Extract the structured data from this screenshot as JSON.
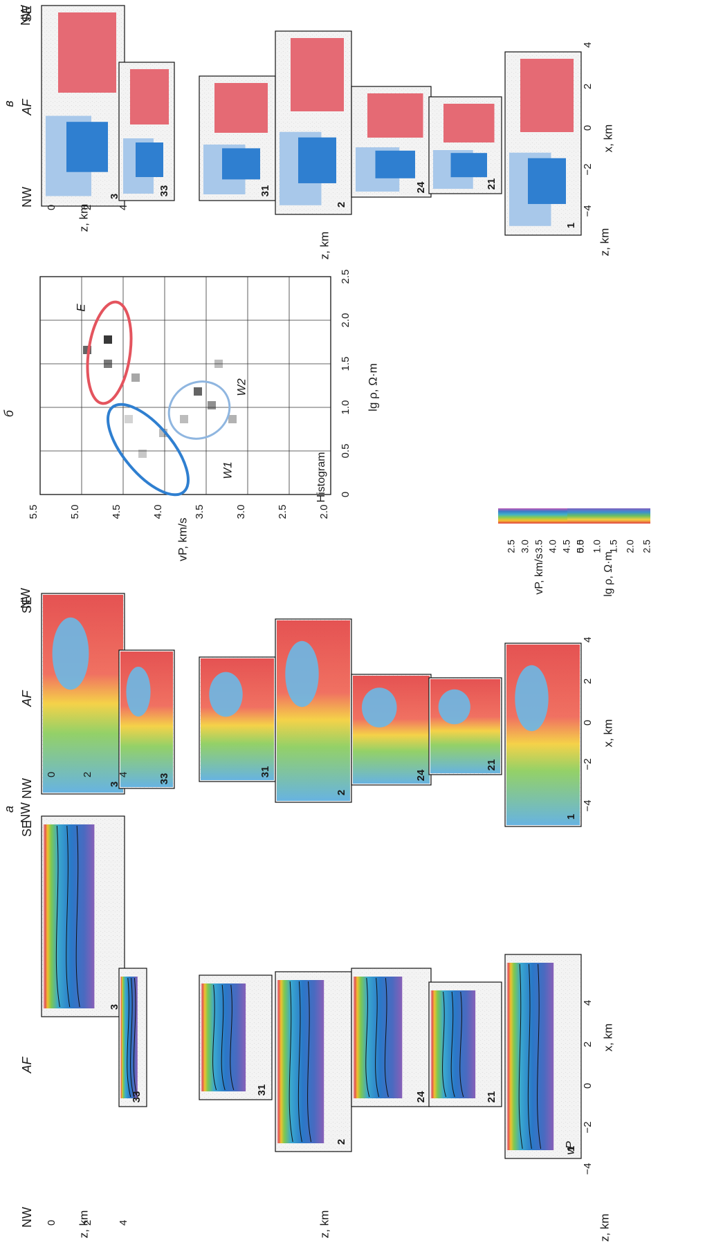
{
  "panel_letters": {
    "a": "а",
    "b": "б",
    "v": "в"
  },
  "profile_ids": [
    "3",
    "33",
    "31",
    "2",
    "24",
    "21",
    "1"
  ],
  "labels": {
    "nw": "NW",
    "se": "SE",
    "af": "AF",
    "z_axis": "z, km",
    "x_axis": "x, km",
    "vp_symbol": "vP"
  },
  "z_ticks": [
    "0",
    "2",
    "4"
  ],
  "x_ticks": [
    "−4",
    "−2",
    "0",
    "2",
    "4"
  ],
  "histogram": {
    "label": "Histogram",
    "ylabel": "vP, km/s",
    "xlabel": "lg ρ, Ω·m",
    "y_ticks": [
      "5.5",
      "5.0",
      "4.5",
      "4.0",
      "3.5",
      "3.0",
      "2.5",
      "2.0"
    ],
    "x_ticks": [
      "0",
      "0.5",
      "1.0",
      "1.5",
      "2.0",
      "2.5"
    ],
    "clusters": [
      {
        "name": "W1",
        "color": "#2f7fd0"
      },
      {
        "name": "W2",
        "color": "#8fb6e0"
      },
      {
        "name": "E",
        "color": "#e4545e"
      }
    ]
  },
  "colorbars": {
    "vp": {
      "label": "vP, km/s",
      "ticks": [
        "2.5",
        "3.0",
        "3.5",
        "4.0",
        "4.5",
        "5.0"
      ]
    },
    "rho": {
      "label": "lg ρ, Ω·m",
      "ticks": [
        "0.5",
        "1.0",
        "1.5",
        "2.0",
        "2.5"
      ]
    }
  },
  "colors": {
    "w1": "#2f7fd0",
    "w2": "#a8c8ea",
    "e": "#e56a74",
    "ellipse_e": "#e4545e",
    "ellipse_w1": "#2f7fd0",
    "ellipse_w2": "#8fb6e0"
  }
}
